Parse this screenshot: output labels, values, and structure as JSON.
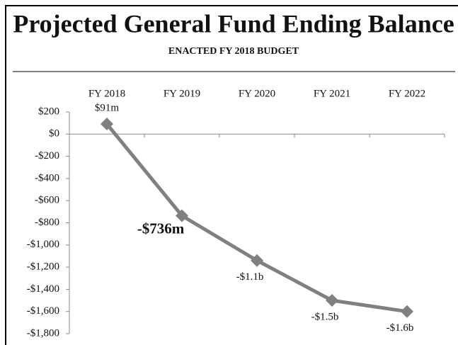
{
  "chart_data": {
    "type": "line",
    "title": "Projected General Fund Ending Balance",
    "subtitle": "ENACTED FY 2018 BUDGET",
    "categories": [
      "FY 2018",
      "FY 2019",
      "FY 2020",
      "FY 2021",
      "FY 2022"
    ],
    "series": [
      {
        "color": "#808080",
        "values": [
          91,
          -736,
          -1140,
          -1500,
          -1600
        ],
        "value_labels": [
          "$91m",
          "-$736m",
          "-$1.1b",
          "-$1.5b",
          "-$1.6b"
        ]
      }
    ],
    "ylim": [
      -1800,
      200
    ],
    "yticks": [
      {
        "value": 200,
        "label": "$200"
      },
      {
        "value": 0,
        "label": "$0"
      },
      {
        "value": -200,
        "label": "-$200"
      },
      {
        "value": -400,
        "label": "-$400"
      },
      {
        "value": -600,
        "label": "-$600"
      },
      {
        "value": -800,
        "label": "-$800"
      },
      {
        "value": -1000,
        "label": "-$1,000"
      },
      {
        "value": -1200,
        "label": "-$1,200"
      },
      {
        "value": -1400,
        "label": "-$1,400"
      },
      {
        "value": -1600,
        "label": "-$1,600"
      },
      {
        "value": -1800,
        "label": "-$1,800"
      }
    ]
  }
}
